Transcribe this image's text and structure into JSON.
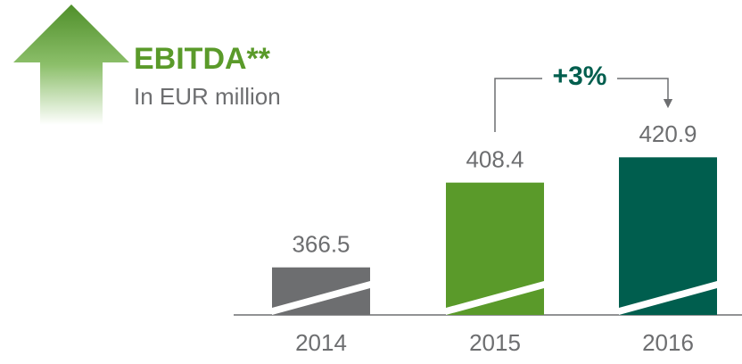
{
  "chart_data": {
    "type": "bar",
    "title": "EBITDA**",
    "subtitle": "In EUR million",
    "annotation": "+3%",
    "categories": [
      "2014",
      "2015",
      "2016"
    ],
    "values": [
      366.5,
      408.4,
      420.9
    ],
    "colors": [
      "#6d6e70",
      "#5a9a2a",
      "#005e4e"
    ],
    "ylim": [
      343,
      440
    ]
  }
}
